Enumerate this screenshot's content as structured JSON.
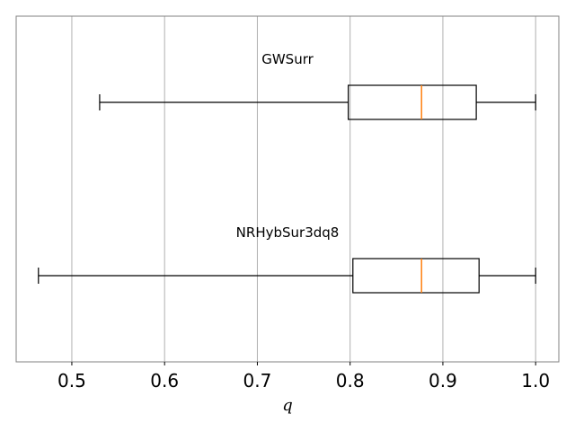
{
  "chart_data": {
    "type": "boxplot",
    "orientation": "horizontal",
    "xlabel": "q",
    "xlim": [
      0.44,
      1.025
    ],
    "xticks": [
      0.5,
      0.6,
      0.7,
      0.8,
      0.9,
      1.0
    ],
    "xtick_labels": [
      "0.5",
      "0.6",
      "0.7",
      "0.8",
      "0.9",
      "1.0"
    ],
    "grid": "vertical",
    "series": [
      {
        "name": "GWSurr",
        "whisker_low": 0.53,
        "q1": 0.798,
        "median": 0.877,
        "q3": 0.936,
        "whisker_high": 1.0
      },
      {
        "name": "NRHybSur3dq8",
        "whisker_low": 0.464,
        "q1": 0.803,
        "median": 0.877,
        "q3": 0.939,
        "whisker_high": 1.0
      }
    ],
    "colors": {
      "median": "#ff7f0e",
      "box": "#000000",
      "grid": "#b0b0b0",
      "frame": "#808080"
    }
  }
}
